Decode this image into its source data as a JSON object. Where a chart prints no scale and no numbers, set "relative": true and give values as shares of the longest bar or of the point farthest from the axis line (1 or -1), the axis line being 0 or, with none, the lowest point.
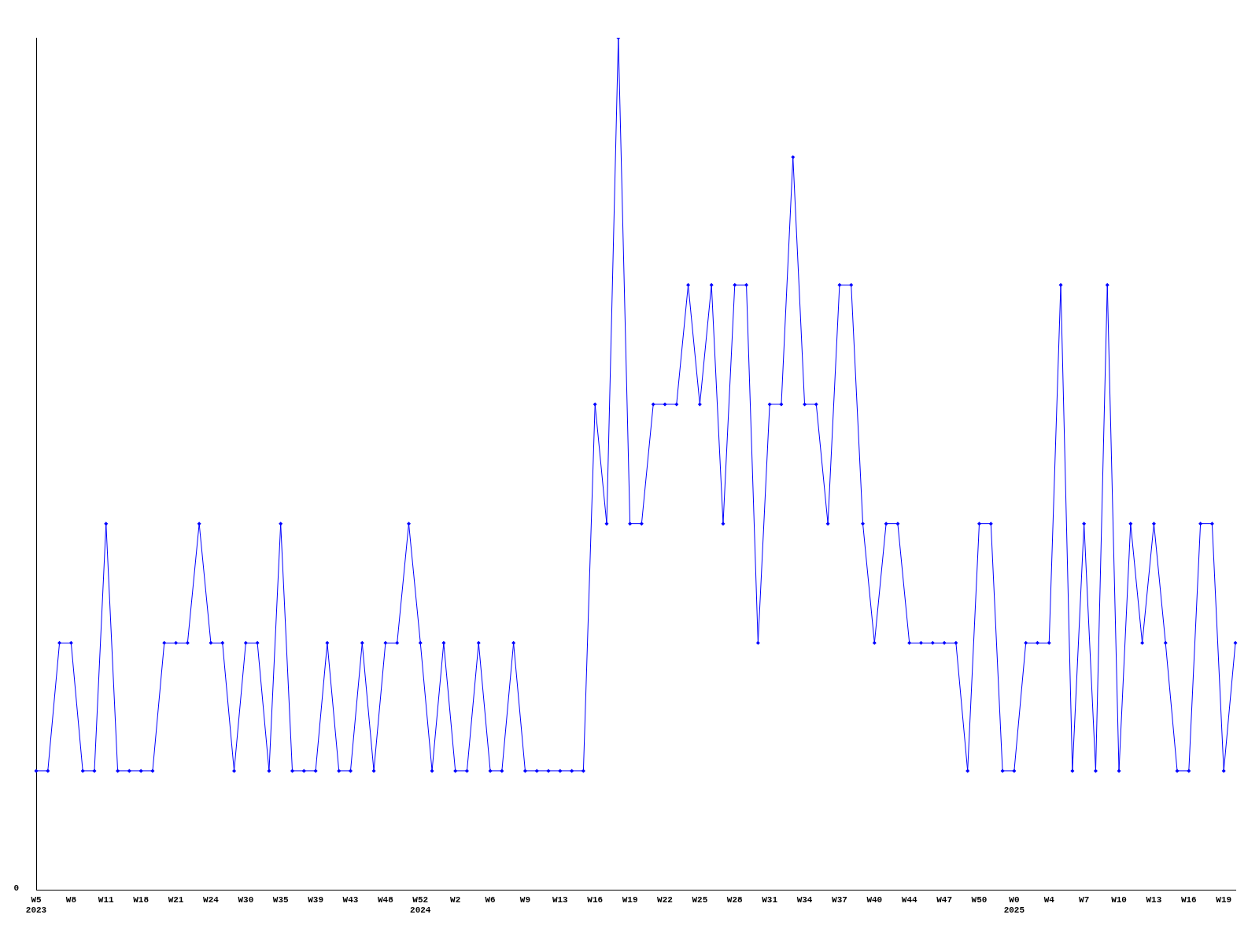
{
  "chart_data": {
    "type": "line",
    "relative": true,
    "color": "#0000ff",
    "marker": "diamond",
    "grid": false,
    "legend": false,
    "annotations": [
      "0"
    ],
    "categories": [
      "W5\n2023",
      null,
      null,
      "W8",
      null,
      null,
      "W11",
      null,
      null,
      "W18",
      null,
      null,
      "W21",
      null,
      null,
      "W24",
      null,
      null,
      "W30",
      null,
      null,
      "W35",
      null,
      null,
      "W39",
      null,
      null,
      "W43",
      null,
      null,
      "W48",
      null,
      null,
      "W52\n2024",
      null,
      null,
      "W2",
      null,
      null,
      "W6",
      null,
      null,
      "W9",
      null,
      null,
      "W13",
      null,
      null,
      "W16",
      null,
      null,
      "W19",
      null,
      null,
      "W22",
      null,
      null,
      "W25",
      null,
      null,
      "W28",
      null,
      null,
      "W31",
      null,
      null,
      "W34",
      null,
      null,
      "W37",
      null,
      null,
      "W40",
      null,
      null,
      "W44",
      null,
      null,
      "W47",
      null,
      null,
      "W50",
      null,
      null,
      "W0\n2025",
      null,
      null,
      "W4",
      null,
      null,
      "W7",
      null,
      null,
      "W10",
      null,
      null,
      "W13",
      null,
      null,
      "W16",
      null,
      null,
      "W19",
      null
    ],
    "values": [
      0.14,
      0.14,
      0.29,
      0.29,
      0.14,
      0.14,
      0.43,
      0.14,
      0.14,
      0.14,
      0.14,
      0.29,
      0.29,
      0.29,
      0.43,
      0.29,
      0.29,
      0.14,
      0.29,
      0.29,
      0.14,
      0.43,
      0.14,
      0.14,
      0.14,
      0.29,
      0.14,
      0.14,
      0.29,
      0.14,
      0.29,
      0.29,
      0.43,
      0.29,
      0.14,
      0.29,
      0.14,
      0.14,
      0.29,
      0.14,
      0.14,
      0.29,
      0.14,
      0.14,
      0.14,
      0.14,
      0.14,
      0.14,
      0.57,
      0.43,
      1,
      0.43,
      0.43,
      0.57,
      0.57,
      0.57,
      0.71,
      0.57,
      0.71,
      0.43,
      0.71,
      0.71,
      0.29,
      0.57,
      0.57,
      0.86,
      0.57,
      0.57,
      0.43,
      0.71,
      0.71,
      0.43,
      0.29,
      0.43,
      0.43,
      0.29,
      0.29,
      0.29,
      0.29,
      0.29,
      0.14,
      0.43,
      0.43,
      0.14,
      0.14,
      0.29,
      0.29,
      0.29,
      0.71,
      0.14,
      0.43,
      0.14,
      0.71,
      0.14,
      0.43,
      0.29,
      0.43,
      0.29,
      0.14,
      0.14,
      0.43,
      0.43,
      0.14,
      0.29
    ]
  }
}
